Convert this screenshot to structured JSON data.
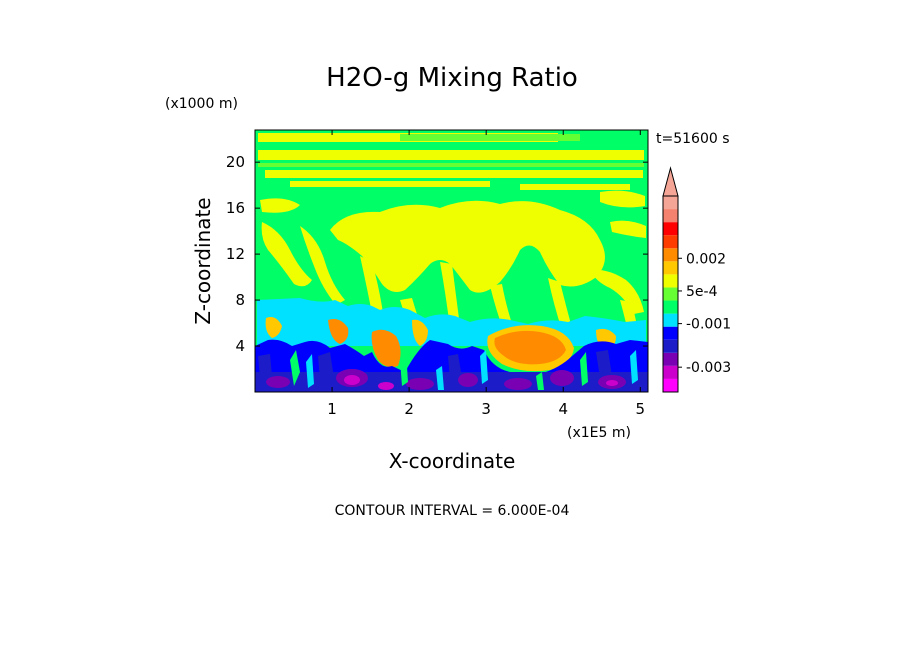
{
  "chart_data": {
    "type": "heatmap",
    "title": "H2O-g Mixing Ratio",
    "time_label": "t=51600 s",
    "xlabel": "X-coordinate",
    "x_units": "(x1E5 m)",
    "ylabel": "Z-coordinate",
    "y_units": "(x1000 m)",
    "xlim": [
      0.0,
      5.1
    ],
    "ylim": [
      0,
      22.8
    ],
    "x_ticks": [
      1,
      2,
      3,
      4,
      5
    ],
    "y_ticks": [
      4,
      8,
      12,
      16,
      20
    ],
    "contour_interval_text": "CONTOUR INTERVAL = 6.000E-04",
    "colorbar": {
      "colors": [
        "#ff00ff",
        "#cc00cc",
        "#7a00b4",
        "#1c1cc8",
        "#0000ff",
        "#00e0ff",
        "#00ff66",
        "#66ff33",
        "#f0ff00",
        "#ffc800",
        "#ff8c00",
        "#ff3c00",
        "#ff0000",
        "#f5826e",
        "#f5a596"
      ],
      "labels": [
        {
          "text": "-0.003",
          "level": -0.003
        },
        {
          "text": "-0.001",
          "level": -0.001
        },
        {
          "text": "5e-4",
          "level": 0.0005
        },
        {
          "text": "0.002",
          "level": 0.002
        }
      ],
      "extend_top": true
    },
    "regions_note_levels": {
      "upper_background": 0.0,
      "moist_plumes": 0.0006,
      "boundary_layer_low": -0.0021
    }
  }
}
